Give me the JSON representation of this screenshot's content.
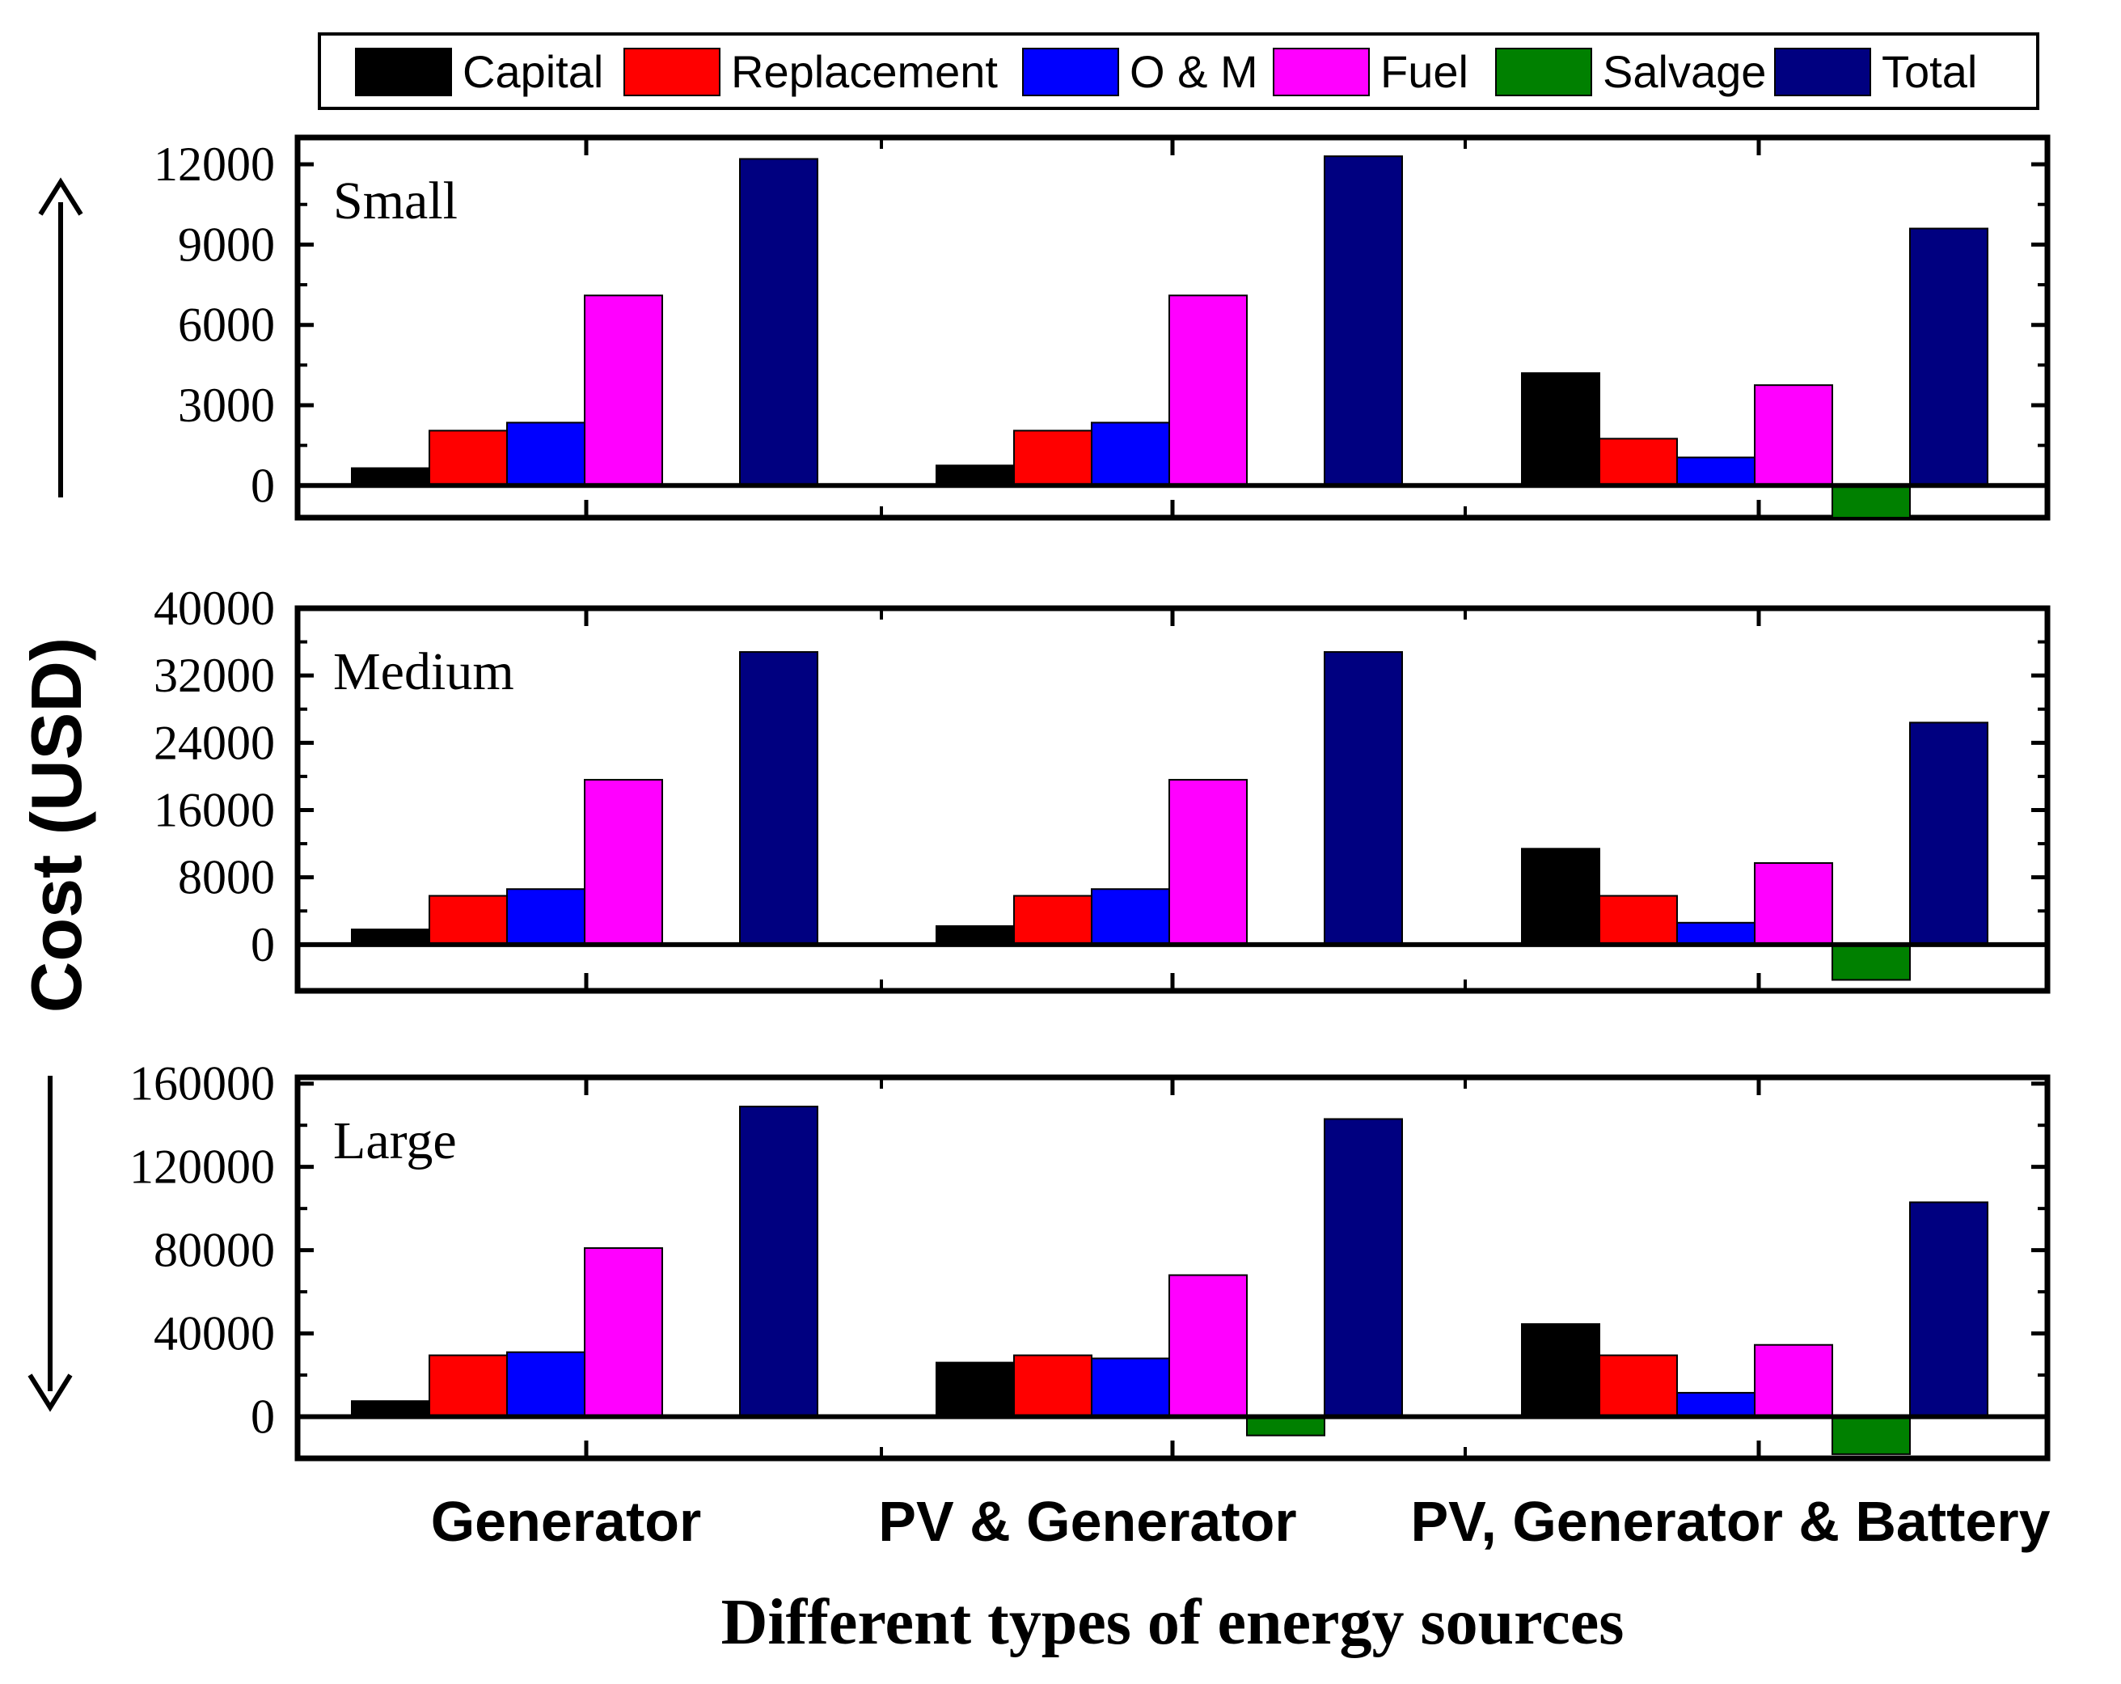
{
  "chart_data": {
    "type": "bar",
    "ylabel": "Cost (USD)",
    "xlabel": "Different types of energy sources",
    "categories": [
      "Generator",
      "PV & Generator",
      "PV, Generator & Battery"
    ],
    "legend": [
      {
        "name": "Capital",
        "color": "#000000"
      },
      {
        "name": "Replacement",
        "color": "#ff0000"
      },
      {
        "name": "O & M",
        "color": "#0000ff"
      },
      {
        "name": "Fuel",
        "color": "#ff00ff"
      },
      {
        "name": "Salvage",
        "color": "#008000"
      },
      {
        "name": "Total",
        "color": "#000080"
      }
    ],
    "panels": [
      {
        "title": "Small",
        "ylim": [
          -1200,
          13000
        ],
        "yticks": [
          0,
          3000,
          6000,
          9000,
          12000
        ],
        "ytick_labels": [
          "0",
          "3000",
          "6000",
          "9000",
          "12000"
        ],
        "series": [
          {
            "name": "Capital",
            "values": [
              650,
              750,
              4200
            ]
          },
          {
            "name": "Replacement",
            "values": [
              2050,
              2050,
              1750
            ]
          },
          {
            "name": "O & M",
            "values": [
              2350,
              2350,
              1050
            ]
          },
          {
            "name": "Fuel",
            "values": [
              7100,
              7100,
              3750
            ]
          },
          {
            "name": "Salvage",
            "values": [
              0,
              0,
              -1200
            ]
          },
          {
            "name": "Total",
            "values": [
              12200,
              12300,
              9600
            ]
          }
        ]
      },
      {
        "title": "Medium",
        "ylim": [
          -5500,
          40000
        ],
        "yticks": [
          0,
          8000,
          16000,
          24000,
          32000,
          40000
        ],
        "ytick_labels": [
          "0",
          "8000",
          "16000",
          "24000",
          "32000",
          "40000"
        ],
        "series": [
          {
            "name": "Capital",
            "values": [
              1800,
              2200,
              11400
            ]
          },
          {
            "name": "Replacement",
            "values": [
              5800,
              5800,
              5800
            ]
          },
          {
            "name": "O & M",
            "values": [
              6600,
              6600,
              2600
            ]
          },
          {
            "name": "Fuel",
            "values": [
              19600,
              19600,
              9700
            ]
          },
          {
            "name": "Salvage",
            "values": [
              0,
              0,
              -4200
            ]
          },
          {
            "name": "Total",
            "values": [
              34800,
              34800,
              26400
            ]
          }
        ]
      },
      {
        "title": "Large",
        "ylim": [
          -20000,
          163000
        ],
        "yticks": [
          0,
          40000,
          80000,
          120000,
          160000
        ],
        "ytick_labels": [
          "0",
          "40000",
          "80000",
          "120000",
          "160000"
        ],
        "series": [
          {
            "name": "Capital",
            "values": [
              7500,
              26000,
              44500
            ]
          },
          {
            "name": "Replacement",
            "values": [
              29500,
              29500,
              29500
            ]
          },
          {
            "name": "O & M",
            "values": [
              31000,
              28000,
              11500
            ]
          },
          {
            "name": "Fuel",
            "values": [
              81000,
              68000,
              34500
            ]
          },
          {
            "name": "Salvage",
            "values": [
              0,
              -9000,
              -18000
            ]
          },
          {
            "name": "Total",
            "values": [
              149000,
              143000,
              103000
            ]
          }
        ]
      }
    ]
  }
}
